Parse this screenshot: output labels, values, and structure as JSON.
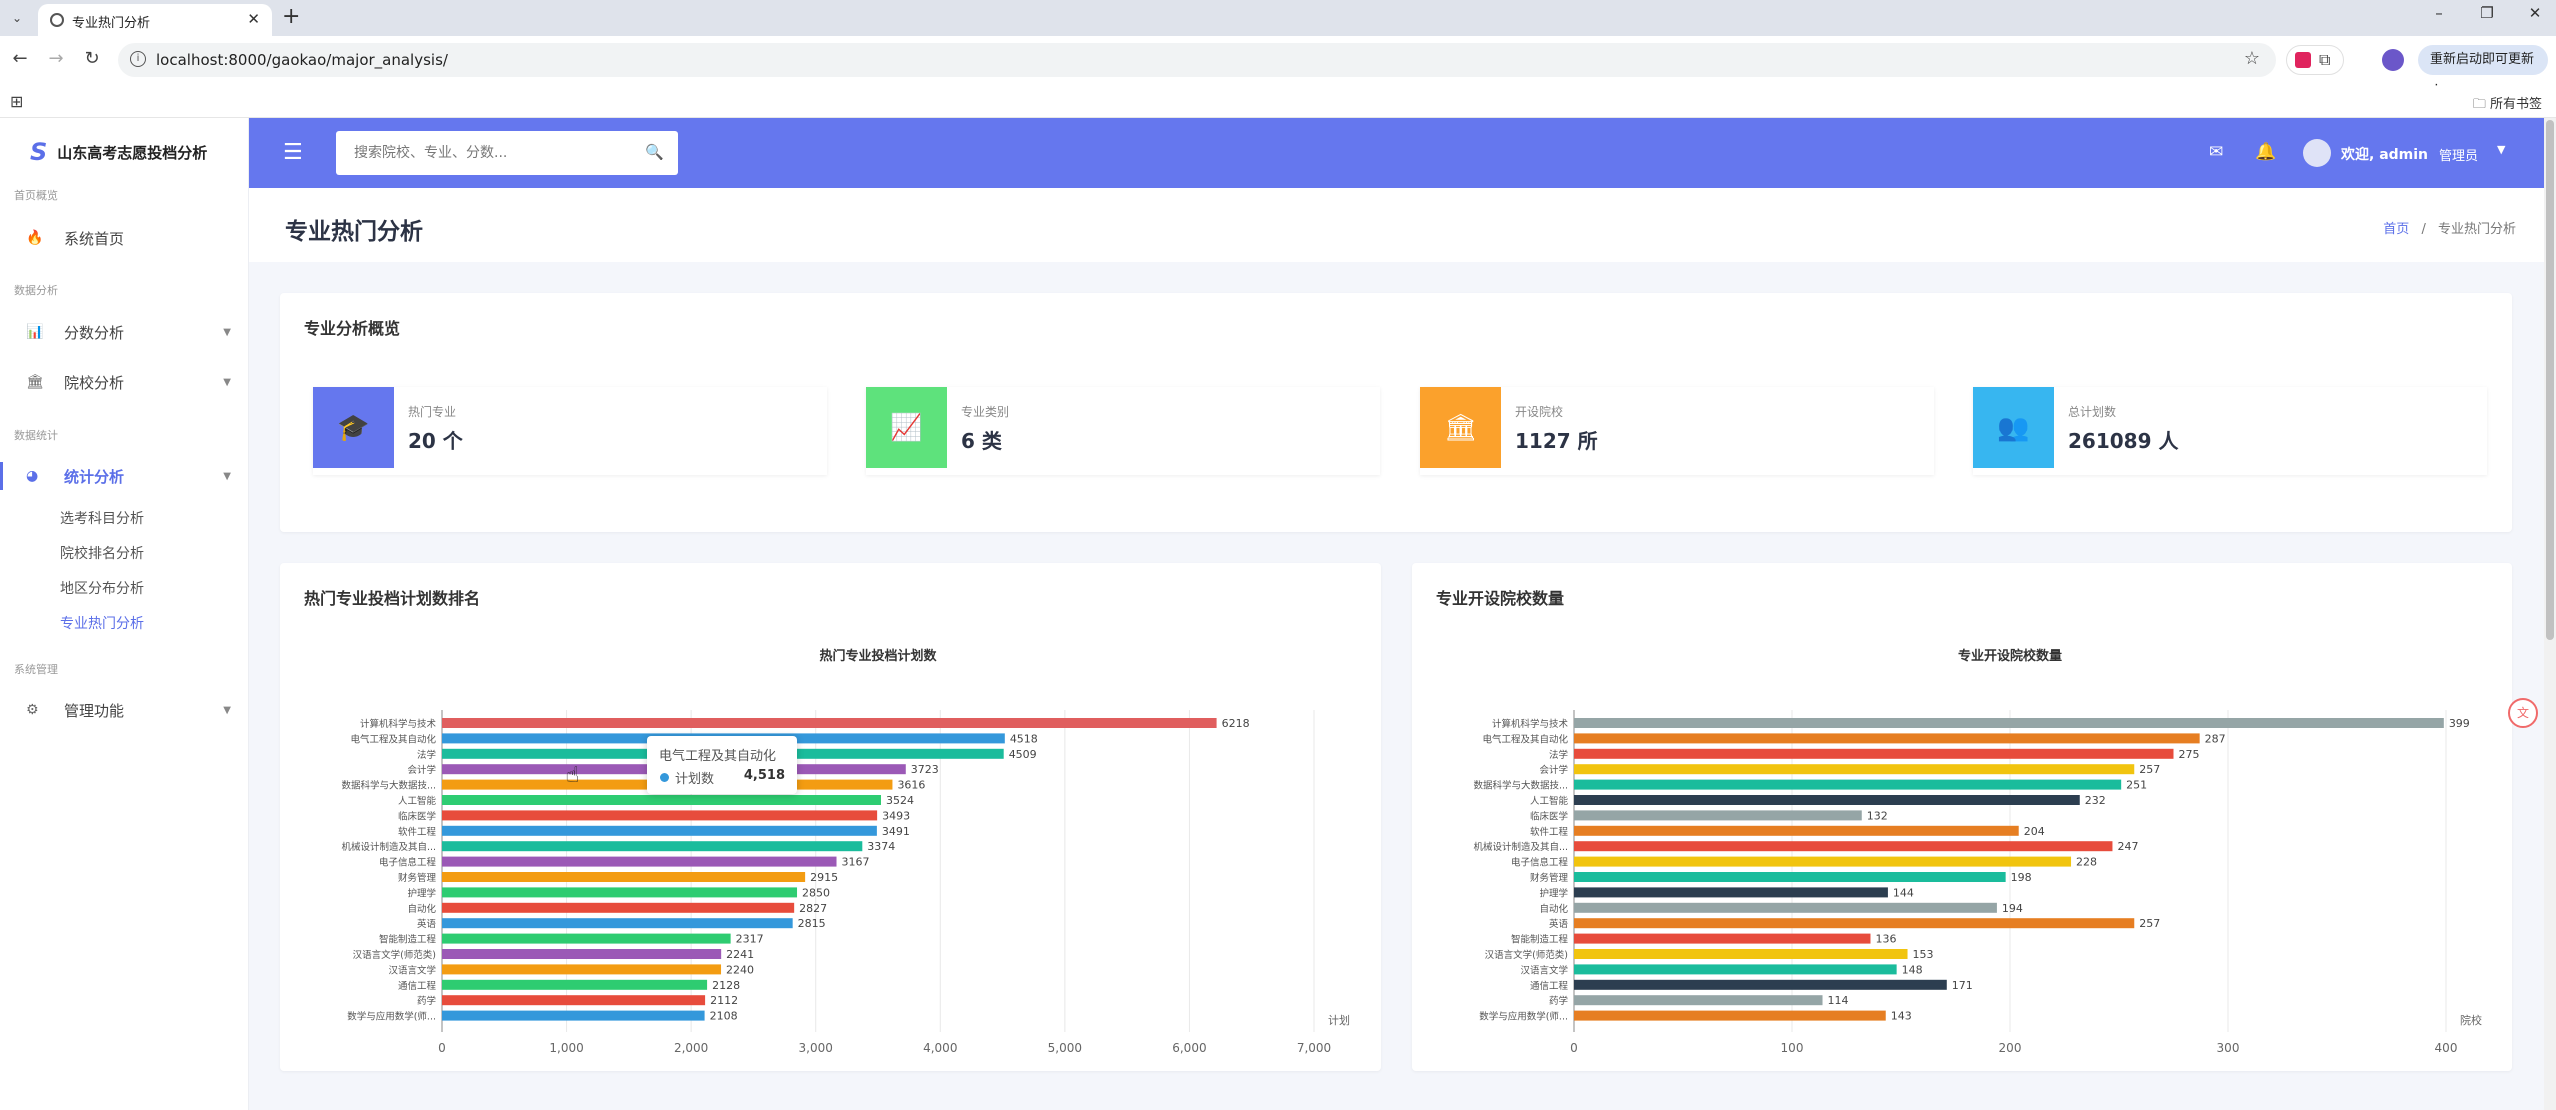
{
  "browser": {
    "tab_title": "专业热门分析",
    "url": "localhost:8000/gaokao/major_analysis/",
    "update_button": "重新启动即可更新",
    "all_bookmarks": "所有书签"
  },
  "sidebar": {
    "brand": "山东高考志愿投档分析",
    "sections": [
      {
        "label": "首页概览"
      },
      {
        "label": "数据分析"
      },
      {
        "label": "数据统计"
      },
      {
        "label": "系统管理"
      }
    ],
    "items": [
      {
        "label": "系统首页",
        "icon": "fire-icon"
      },
      {
        "label": "分数分析",
        "icon": "bar-chart-icon"
      },
      {
        "label": "院校分析",
        "icon": "bank-icon"
      },
      {
        "label": "统计分析",
        "icon": "pie-chart-icon"
      },
      {
        "label": "管理功能",
        "icon": "gears-icon"
      }
    ],
    "subitems": [
      "选考科目分析",
      "院校排名分析",
      "地区分布分析",
      "专业热门分析"
    ]
  },
  "header": {
    "search_placeholder": "搜索院校、专业、分数...",
    "welcome": "欢迎, admin",
    "role": "管理员"
  },
  "page": {
    "title": "专业热门分析",
    "breadcrumb_home": "首页",
    "breadcrumb_sep": "/",
    "breadcrumb_current": "专业热门分析"
  },
  "overview": {
    "title": "专业分析概览",
    "stats": [
      {
        "label": "热门专业",
        "value": "20 个",
        "color": "#6577ee",
        "icon": "graduation-cap-icon"
      },
      {
        "label": "专业类别",
        "value": "6 类",
        "color": "#5ee27c",
        "icon": "trend-chart-icon"
      },
      {
        "label": "开设院校",
        "value": "1127 所",
        "color": "#fba12c",
        "icon": "university-icon"
      },
      {
        "label": "总计划数",
        "value": "261089 人",
        "color": "#37b6f0",
        "icon": "users-icon"
      }
    ]
  },
  "panels": {
    "left_title": "热门专业投档计划数排名",
    "right_title": "专业开设院校数量"
  },
  "tooltip": {
    "title": "电气工程及其自动化",
    "series": "计划数",
    "value": "4,518"
  },
  "chart_data": [
    {
      "type": "bar",
      "orientation": "horizontal",
      "title": "热门专业投档计划数",
      "xlabel": "计划",
      "xlim": [
        0,
        7000
      ],
      "xticks": [
        "0",
        "1,000",
        "2,000",
        "3,000",
        "4,000",
        "5,000",
        "6,000",
        "7,000"
      ],
      "categories": [
        "计算机科学与技术",
        "电气工程及其自动化",
        "法学",
        "会计学",
        "数据科学与大数据技...",
        "人工智能",
        "临床医学",
        "软件工程",
        "机械设计制造及其自...",
        "电子信息工程",
        "财务管理",
        "护理学",
        "自动化",
        "英语",
        "智能制造工程",
        "汉语言文学(师范类)",
        "汉语言文学",
        "通信工程",
        "药学",
        "数学与应用数学(师..."
      ],
      "values": [
        6218,
        4518,
        4509,
        3723,
        3616,
        3524,
        3493,
        3491,
        3374,
        3167,
        2915,
        2850,
        2827,
        2815,
        2317,
        2241,
        2240,
        2128,
        2112,
        2108
      ],
      "colors": [
        "#e05e5e",
        "#3498db",
        "#1abc9c",
        "#9b59b6",
        "#f39c12",
        "#2ecc71",
        "#e74c3c",
        "#3498db",
        "#1abc9c",
        "#9b59b6",
        "#f39c12",
        "#2ecc71",
        "#e74c3c",
        "#3498db",
        "#2ecc71",
        "#9b59b6",
        "#f39c12",
        "#2ecc71",
        "#e74c3c",
        "#3498db"
      ]
    },
    {
      "type": "bar",
      "orientation": "horizontal",
      "title": "专业开设院校数量",
      "xlabel": "院校",
      "xlim": [
        0,
        400
      ],
      "xticks": [
        "0",
        "100",
        "200",
        "300",
        "400"
      ],
      "categories": [
        "计算机科学与技术",
        "电气工程及其自动化",
        "法学",
        "会计学",
        "数据科学与大数据技...",
        "人工智能",
        "临床医学",
        "软件工程",
        "机械设计制造及其自...",
        "电子信息工程",
        "财务管理",
        "护理学",
        "自动化",
        "英语",
        "智能制造工程",
        "汉语言文学(师范类)",
        "汉语言文学",
        "通信工程",
        "药学",
        "数学与应用数学(师..."
      ],
      "values": [
        399,
        287,
        275,
        257,
        251,
        232,
        132,
        204,
        247,
        228,
        198,
        144,
        194,
        257,
        136,
        153,
        148,
        171,
        114,
        143
      ],
      "colors": [
        "#95a5a6",
        "#e67e22",
        "#e74c3c",
        "#f1c40f",
        "#1abc9c",
        "#2c3e50",
        "#95a5a6",
        "#e67e22",
        "#e74c3c",
        "#f1c40f",
        "#1abc9c",
        "#2c3e50",
        "#95a5a6",
        "#e67e22",
        "#e74c3c",
        "#f1c40f",
        "#1abc9c",
        "#2c3e50",
        "#95a5a6",
        "#e67e22"
      ]
    }
  ]
}
